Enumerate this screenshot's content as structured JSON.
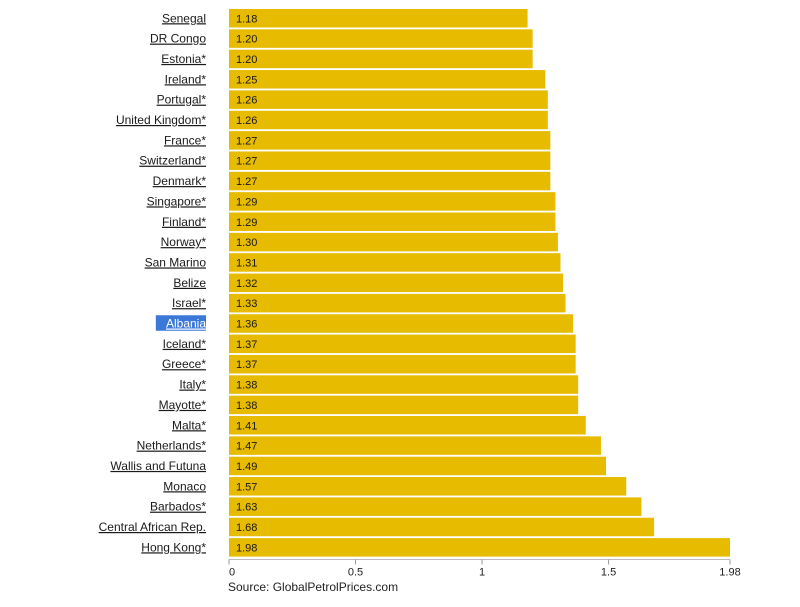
{
  "chart_data": {
    "type": "bar",
    "orientation": "horizontal",
    "categories": [
      "Senegal",
      "DR Congo",
      "Estonia*",
      "Ireland*",
      "Portugal*",
      "United Kingdom*",
      "France*",
      "Switzerland*",
      "Denmark*",
      "Singapore*",
      "Finland*",
      "Norway*",
      "San Marino",
      "Belize",
      "Israel*",
      "Albania",
      "Iceland*",
      "Greece*",
      "Italy*",
      "Mayotte*",
      "Malta*",
      "Netherlands*",
      "Wallis and Futuna",
      "Monaco",
      "Barbados*",
      "Central African Rep.",
      "Hong Kong*"
    ],
    "values": [
      1.18,
      1.2,
      1.2,
      1.25,
      1.26,
      1.26,
      1.27,
      1.27,
      1.27,
      1.29,
      1.29,
      1.3,
      1.31,
      1.32,
      1.33,
      1.36,
      1.37,
      1.37,
      1.38,
      1.38,
      1.41,
      1.47,
      1.49,
      1.57,
      1.63,
      1.68,
      1.98
    ],
    "value_labels": [
      "1.18",
      "1.20",
      "1.20",
      "1.25",
      "1.26",
      "1.26",
      "1.27",
      "1.27",
      "1.27",
      "1.29",
      "1.29",
      "1.30",
      "1.31",
      "1.32",
      "1.33",
      "1.36",
      "1.37",
      "1.37",
      "1.38",
      "1.38",
      "1.41",
      "1.47",
      "1.49",
      "1.57",
      "1.63",
      "1.68",
      "1.98"
    ],
    "x_ticks": [
      0,
      0.5,
      1,
      1.5,
      1.98
    ],
    "x_tick_labels": [
      "0",
      "0.5",
      "1",
      "1.5",
      "1.98"
    ],
    "xlim": [
      0,
      1.98
    ],
    "highlighted_category": "Albania",
    "bar_color": "#e6bb00",
    "highlight_color": "#3b78d8",
    "grid": false,
    "source": "Source: GlobalPetrolPrices.com"
  }
}
